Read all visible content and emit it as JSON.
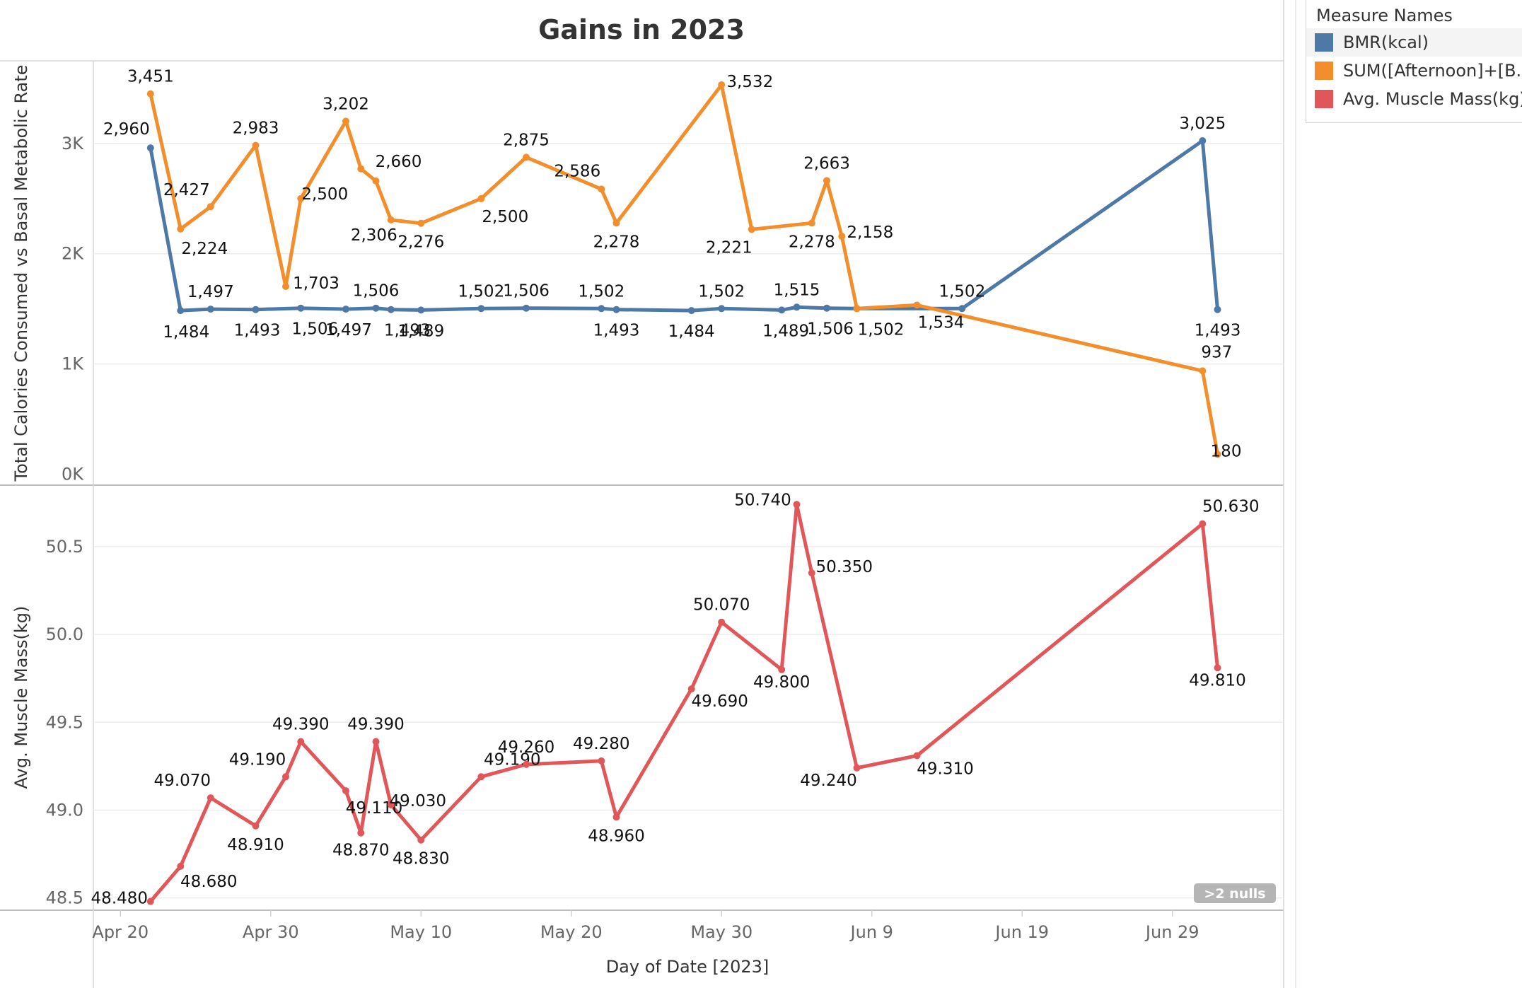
{
  "chart_data": {
    "type": "line",
    "title": "Gains in 2023",
    "xlabel": "Day of Date [2023]",
    "x_ticks": [
      "Apr 20",
      "Apr 30",
      "May 10",
      "May 20",
      "May 30",
      "Jun 9",
      "Jun 19",
      "Jun 29"
    ],
    "x_tick_days": [
      0,
      10,
      20,
      30,
      40,
      50,
      60,
      70
    ],
    "x_range_days": [
      -1.8,
      77.4
    ],
    "nulls_badge": ">2 nulls",
    "legend": {
      "title": "Measure Names",
      "items": [
        {
          "label": "BMR(kcal)",
          "color": "#4e79a7"
        },
        {
          "label": "SUM([Afternoon]+[B..",
          "color": "#f28e2b"
        },
        {
          "label": "Avg. Muscle Mass(kg)",
          "color": "#e15759"
        }
      ]
    },
    "panels": [
      {
        "ylabel": "Total Calories Consumed vs Basal Metabolic Rate",
        "ylim": [
          -100,
          3750
        ],
        "y_ticks": [
          0,
          1000,
          2000,
          3000
        ],
        "y_tick_labels": [
          "0K",
          "1K",
          "2K",
          "3K"
        ],
        "series": [
          {
            "name": "BMR(kcal)",
            "color": "#4e79a7",
            "x": [
              2,
              4,
              6,
              9,
              12,
              15,
              17,
              18,
              20,
              24,
              27,
              32,
              33,
              38,
              40,
              44,
              45,
              47,
              49,
              56,
              72,
              73
            ],
            "values": [
              2960,
              1484,
              1497,
              1493,
              1506,
              1497,
              1506,
              1493,
              1489,
              1502,
              1506,
              1502,
              1493,
              1484,
              1502,
              1489,
              1515,
              1506,
              1502,
              1502,
              3025,
              1493
            ],
            "labels": [
              "2,960",
              "1,484",
              "1,497",
              "1,493",
              "1,506",
              "1,497",
              "1,506",
              "1,493",
              "1,489",
              "1,502",
              "1,506",
              "1,502",
              "1,493",
              "1,484",
              "1,502",
              "1,489",
              "1,515",
              "1,506",
              "1,502",
              "1,502",
              "3,025",
              "1,493"
            ]
          },
          {
            "name": "SUM([Afternoon]+[B..",
            "color": "#f28e2b",
            "x": [
              2,
              4,
              6,
              9,
              11,
              12,
              15,
              16,
              17,
              18,
              20,
              24,
              27,
              32,
              33,
              40,
              42,
              46,
              47,
              48,
              49,
              53,
              72,
              73
            ],
            "values": [
              3451,
              2224,
              2427,
              2983,
              1703,
              2500,
              3202,
              2770,
              2660,
              2306,
              2276,
              2500,
              2875,
              2586,
              2278,
              3532,
              2221,
              2278,
              2663,
              2158,
              1502,
              1534,
              937,
              180
            ],
            "labels": [
              "3,451",
              "2,224",
              "2,427",
              "2,983",
              "1,703",
              "2,500",
              "3,202",
              "",
              "2,660",
              "2,306",
              "2,276",
              "2,500",
              "2,875",
              "2,586",
              "2,278",
              "3,532",
              "2,221",
              "2,278",
              "2,663",
              "2,158",
              "",
              "1,534",
              "937",
              "180"
            ]
          }
        ]
      },
      {
        "ylabel": "Avg. Muscle Mass(kg)",
        "ylim": [
          48.43,
          50.85
        ],
        "y_ticks": [
          48.5,
          49.0,
          49.5,
          50.0,
          50.5
        ],
        "y_tick_labels": [
          "48.5",
          "49.0",
          "49.5",
          "50.0",
          "50.5"
        ],
        "series": [
          {
            "name": "Avg. Muscle Mass(kg)",
            "color": "#e15759",
            "x": [
              2,
              4,
              6,
              9,
              11,
              12,
              15,
              16,
              17,
              18,
              20,
              24,
              27,
              32,
              33,
              38,
              40,
              44,
              45,
              46,
              49,
              53,
              72,
              73
            ],
            "values": [
              48.48,
              48.68,
              49.07,
              48.91,
              49.19,
              49.39,
              49.11,
              48.87,
              49.39,
              49.03,
              48.83,
              49.19,
              49.26,
              49.28,
              48.96,
              49.69,
              50.07,
              49.8,
              50.74,
              50.35,
              49.24,
              49.31,
              50.63,
              49.81
            ],
            "labels": [
              "48.480",
              "48.680",
              "49.070",
              "48.910",
              "49.190",
              "49.390",
              "49.110",
              "48.870",
              "49.390",
              "49.030",
              "48.830",
              "49.190",
              "49.260",
              "49.280",
              "48.960",
              "49.690",
              "50.070",
              "49.800",
              "50.740",
              "50.350",
              "49.240",
              "49.310",
              "50.630",
              "49.810"
            ]
          }
        ]
      }
    ]
  }
}
